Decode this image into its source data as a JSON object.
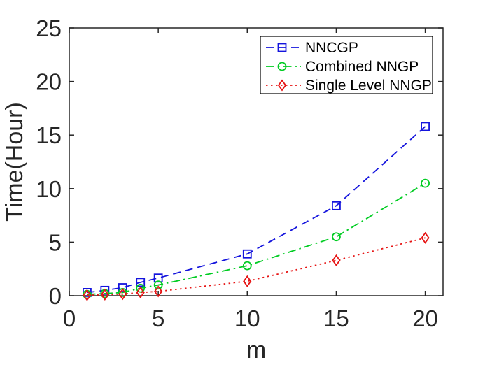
{
  "figure": {
    "background": "#ffffff"
  },
  "chart_data": {
    "type": "line",
    "title": "",
    "xlabel": "m",
    "ylabel": "Time(Hour)",
    "xlim": [
      0,
      21
    ],
    "ylim": [
      0,
      25
    ],
    "xticks": [
      "0",
      "5",
      "10",
      "15",
      "20"
    ],
    "xtick_values": [
      0,
      5,
      10,
      15,
      20
    ],
    "yticks": [
      "0",
      "5",
      "10",
      "15",
      "20",
      "25"
    ],
    "ytick_values": [
      0,
      5,
      10,
      15,
      20,
      25
    ],
    "grid": false,
    "legend_position": "top-right",
    "axis_color": "#262626",
    "tick_label_color": "#262626",
    "legend_text_color": "#000000",
    "x": [
      1,
      2,
      3,
      4,
      5,
      10,
      15,
      20
    ],
    "series": [
      {
        "name": "NNCGP",
        "color": "#1414dd",
        "linestyle": "dashed",
        "marker": "square",
        "values": [
          0.3,
          0.5,
          0.75,
          1.25,
          1.65,
          3.9,
          8.4,
          15.8
        ]
      },
      {
        "name": "Combined NNGP",
        "color": "#00cc22",
        "linestyle": "dashdot",
        "marker": "circle",
        "values": [
          0.12,
          0.2,
          0.3,
          0.7,
          1.0,
          2.8,
          5.5,
          10.5
        ]
      },
      {
        "name": "Single Level NNGP",
        "color": "#e61414",
        "linestyle": "dotted",
        "marker": "diamond",
        "values": [
          0.05,
          0.1,
          0.15,
          0.3,
          0.4,
          1.35,
          3.3,
          5.4
        ]
      }
    ]
  }
}
